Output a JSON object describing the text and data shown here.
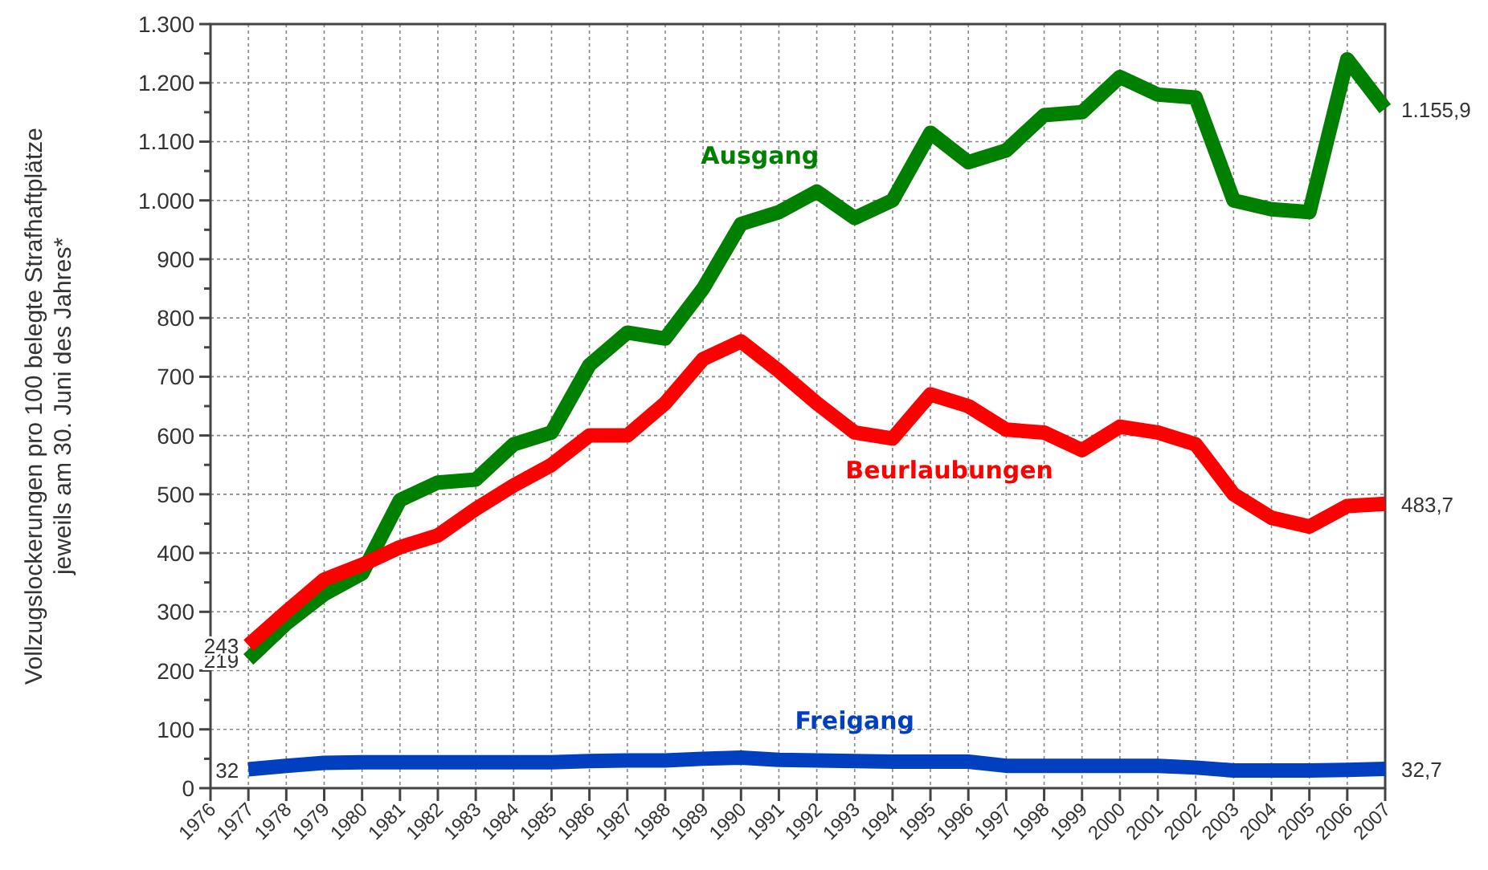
{
  "chart_data": {
    "type": "line",
    "ylabel": "Vollzugslockerungen pro 100 belegte Strafhaftplätze\njeweils am 30. Juni des Jahres*",
    "x": [
      1977,
      1978,
      1979,
      1980,
      1981,
      1982,
      1983,
      1984,
      1985,
      1986,
      1987,
      1988,
      1989,
      1990,
      1991,
      1992,
      1993,
      1994,
      1995,
      1996,
      1997,
      1998,
      1999,
      2000,
      2001,
      2002,
      2003,
      2004,
      2005,
      2006,
      2007
    ],
    "xlim": [
      1976,
      2007
    ],
    "xticks": [
      1976,
      1977,
      1978,
      1979,
      1980,
      1981,
      1982,
      1983,
      1984,
      1985,
      1986,
      1987,
      1988,
      1989,
      1990,
      1991,
      1992,
      1993,
      1994,
      1995,
      1996,
      1997,
      1998,
      1999,
      2000,
      2001,
      2002,
      2003,
      2004,
      2005,
      2006,
      2007
    ],
    "ylim": [
      0,
      1300
    ],
    "yticks": [
      0,
      {
        "value": 50,
        "label": null
      },
      100,
      {
        "value": 150,
        "label": null
      },
      200,
      {
        "value": 250,
        "label": null
      },
      300,
      {
        "value": 350,
        "label": null
      },
      400,
      {
        "value": 450,
        "label": null
      },
      500,
      {
        "value": 550,
        "label": null
      },
      600,
      {
        "value": 650,
        "label": null
      },
      700,
      {
        "value": 750,
        "label": null
      },
      800,
      {
        "value": 850,
        "label": null
      },
      900,
      {
        "value": 950,
        "label": null
      },
      {
        "value": 1000,
        "label": "1.000"
      },
      {
        "value": 1050,
        "label": null
      },
      {
        "value": 1100,
        "label": "1.100"
      },
      {
        "value": 1150,
        "label": null
      },
      {
        "value": 1200,
        "label": "1.200"
      },
      {
        "value": 1250,
        "label": null
      },
      {
        "value": 1300,
        "label": "1.300"
      }
    ],
    "grid": true,
    "marker": "none",
    "line_style": "solid",
    "series": [
      {
        "name": "Ausgang",
        "color": "#008000",
        "values": [
          219,
          280,
          330,
          365,
          490,
          520,
          525,
          585,
          605,
          720,
          775,
          765,
          850,
          960,
          980,
          1015,
          970,
          1000,
          1115,
          1065,
          1085,
          1145,
          1150,
          1210,
          1180,
          1175,
          1000,
          985,
          980,
          1240,
          1155.9
        ],
        "value_labels": [
          "219",
          null,
          null,
          null,
          null,
          null,
          null,
          null,
          null,
          null,
          null,
          null,
          null,
          null,
          null,
          null,
          null,
          null,
          null,
          null,
          null,
          null,
          null,
          null,
          null,
          null,
          null,
          null,
          null,
          null,
          "1.155,9"
        ]
      },
      {
        "name": "Beurlaubungen",
        "color": "#ff0000",
        "values": [
          243,
          300,
          355,
          380,
          410,
          430,
          475,
          515,
          550,
          600,
          600,
          655,
          730,
          760,
          710,
          655,
          605,
          595,
          670,
          650,
          610,
          605,
          575,
          615,
          605,
          585,
          500,
          460,
          445,
          480,
          483.7
        ],
        "value_labels": [
          "243",
          null,
          null,
          null,
          null,
          null,
          null,
          null,
          null,
          null,
          null,
          null,
          null,
          null,
          null,
          null,
          null,
          null,
          null,
          null,
          null,
          null,
          null,
          null,
          null,
          null,
          null,
          null,
          null,
          null,
          "483,7"
        ]
      },
      {
        "name": "Freigang",
        "color": "#0040c0",
        "values": [
          32,
          38,
          43,
          44,
          44,
          44,
          44,
          44,
          44,
          46,
          47,
          47,
          50,
          52,
          48,
          47,
          46,
          45,
          45,
          45,
          38,
          38,
          38,
          38,
          38,
          35,
          30,
          30,
          30,
          31,
          32.7
        ],
        "value_labels": [
          "32",
          null,
          null,
          null,
          null,
          null,
          null,
          null,
          null,
          null,
          null,
          null,
          null,
          null,
          null,
          null,
          null,
          null,
          null,
          null,
          null,
          null,
          null,
          null,
          null,
          null,
          null,
          null,
          null,
          null,
          "32,7"
        ]
      }
    ]
  }
}
